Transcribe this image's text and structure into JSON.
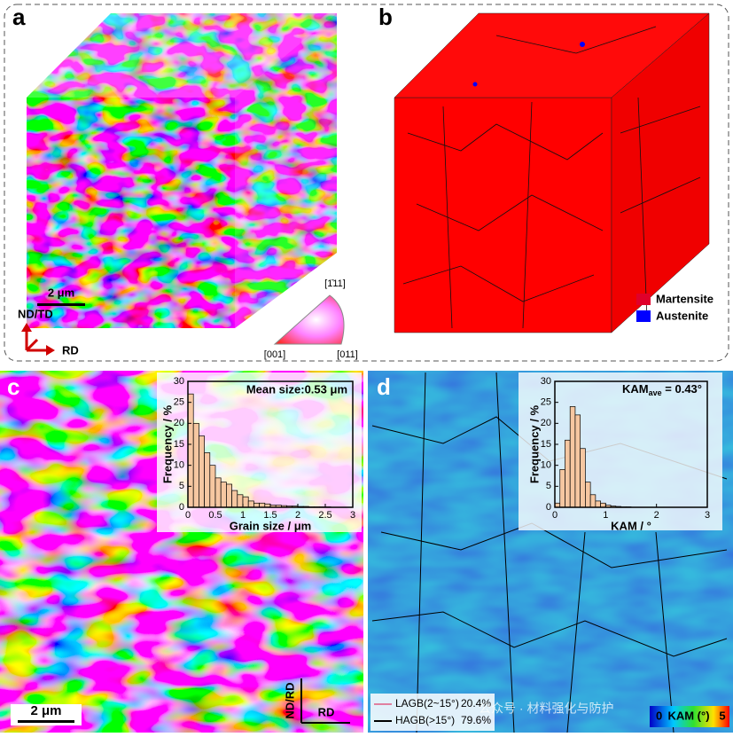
{
  "figure": {
    "panels": [
      "a",
      "b",
      "c",
      "d"
    ],
    "scale_bar_a": "2 μm",
    "scale_bar_c": "2 μm",
    "axes_a": [
      "ND/TD",
      "RD"
    ],
    "axes_c": [
      "ND/RD",
      "RD"
    ],
    "ipf_labels": [
      "[1̄11]",
      "[001]",
      "[011]"
    ],
    "phase_legend": [
      "Martensite",
      "Austenite"
    ],
    "gb_legend": [
      [
        "LAGB(2~15°)",
        "20.4%"
      ],
      [
        "HAGB(>15°)",
        "79.6%"
      ]
    ],
    "kam_scale": [
      "0",
      "KAM (°)",
      "5"
    ],
    "watermark": "公众号 · 材料强化与防护"
  },
  "chart_data": [
    {
      "type": "histogram",
      "x_label": "Grain size / μm",
      "y_label": "Frequency / %",
      "annotation": "Mean size:0.53 μm",
      "color": "#f6c7a1",
      "bins": [
        0,
        0.1,
        0.2,
        0.3,
        0.4,
        0.5,
        0.6,
        0.7,
        0.8,
        0.9,
        1.0,
        1.1,
        1.2,
        1.3,
        1.4,
        1.5,
        1.6,
        1.7,
        1.8,
        1.9,
        2.0,
        2.1,
        2.2,
        2.3,
        2.4,
        2.5,
        2.6,
        2.7,
        2.8,
        2.9,
        3.0
      ],
      "counts": [
        27,
        20,
        17,
        13,
        10,
        7,
        6,
        5.5,
        4,
        3,
        2.5,
        1.5,
        1,
        1,
        0.8,
        0.5,
        0.5,
        0.4,
        0.3,
        0.3,
        0.2,
        0.2,
        0.1,
        0.1,
        0.1,
        0.1,
        0,
        0,
        0,
        0
      ],
      "xlim": [
        0,
        3
      ],
      "xticks": [
        0,
        0.5,
        1,
        1.5,
        2,
        2.5,
        3
      ],
      "ylim": [
        0,
        30
      ],
      "yticks": [
        0,
        5,
        10,
        15,
        20,
        25,
        30
      ]
    },
    {
      "type": "histogram",
      "x_label": "KAM / °",
      "y_label": "Frequency / %",
      "annotation": [
        "KAM",
        "ave",
        " = 0.43°"
      ],
      "color": "#f6c7a1",
      "bins": [
        0,
        0.1,
        0.2,
        0.3,
        0.4,
        0.5,
        0.6,
        0.7,
        0.8,
        0.9,
        1.0,
        1.1,
        1.2,
        1.3,
        1.4,
        1.5
      ],
      "counts": [
        1,
        9,
        16,
        24,
        22,
        14,
        6,
        3,
        1.5,
        1,
        0.5,
        0.3,
        0.2,
        0.1,
        0.1
      ],
      "xlim": [
        0,
        3
      ],
      "xticks": [
        0,
        1,
        2,
        3
      ],
      "ylim": [
        0,
        30
      ],
      "yticks": [
        0,
        5,
        10,
        15,
        20,
        25,
        30
      ]
    }
  ]
}
